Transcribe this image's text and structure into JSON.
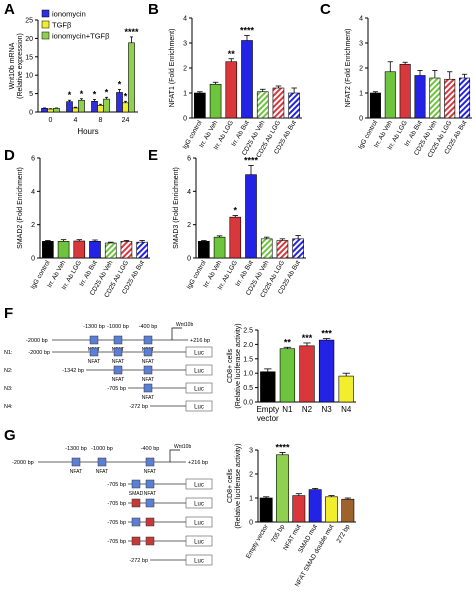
{
  "panels": {
    "A": {
      "letter": "A"
    },
    "B": {
      "letter": "B"
    },
    "C": {
      "letter": "C"
    },
    "D": {
      "letter": "D"
    },
    "E": {
      "letter": "E"
    },
    "F": {
      "letter": "F"
    },
    "G": {
      "letter": "G"
    }
  },
  "colors": {
    "ionomycin": "#2f2fe0",
    "tgfb": "#f2ee2e",
    "combo": "#8fd14f",
    "black": "#000000",
    "green": "#6ec43c",
    "red": "#d8383b",
    "blue": "#2323e6",
    "hatch_green": "#7fd04a",
    "hatch_red": "#d84a4a",
    "hatch_blue": "#4d4de0",
    "dark_red": "#8a1a1a",
    "brown": "#a0622d"
  },
  "chart_data": [
    {
      "id": "A",
      "type": "bar",
      "xlabel": "Hours",
      "ylabel": "Wnt10b mRNA",
      "ylabel2": "(Relative expression)",
      "categories": [
        "0",
        "4",
        "8",
        "24"
      ],
      "ylim": [
        0,
        25
      ],
      "yticks": [
        0,
        5,
        10,
        15,
        20,
        25
      ],
      "legend": "top-left",
      "series": [
        {
          "name": "ionomycin",
          "values": [
            1.0,
            2.8,
            2.9,
            5.3
          ],
          "errors": [
            0.1,
            0.4,
            0.5,
            0.8
          ],
          "sig": [
            "",
            "*",
            "*",
            "*"
          ]
        },
        {
          "name": "TGFβ",
          "values": [
            0.8,
            1.1,
            1.8,
            2.5
          ],
          "errors": [
            0.1,
            0.2,
            0.3,
            0.4
          ],
          "sig": [
            "",
            "",
            "",
            "*"
          ]
        },
        {
          "name": "ionomycin+TGFβ",
          "values": [
            1.0,
            3.2,
            3.5,
            18.8
          ],
          "errors": [
            0.1,
            0.4,
            0.5,
            1.6
          ],
          "sig": [
            "",
            "*",
            "*",
            "****"
          ]
        }
      ]
    },
    {
      "id": "B",
      "type": "bar",
      "ylabel": "NFAT1 (Fold Enrichment)",
      "categories": [
        "IgG control",
        "Irr. Ab Veh",
        "Irr. Ab LGG",
        "Irr. Ab But",
        "CD25 Ab Veh",
        "CD25 Ab LGG",
        "CD25 Ab But"
      ],
      "values": [
        1.0,
        1.35,
        2.25,
        3.1,
        1.05,
        1.2,
        1.0
      ],
      "errors": [
        0.05,
        0.08,
        0.12,
        0.2,
        0.1,
        0.08,
        0.2
      ],
      "sig": [
        "",
        "",
        "**",
        "****",
        "",
        "",
        ""
      ],
      "ylim": [
        0,
        4
      ],
      "yticks": [
        0,
        1,
        2,
        3,
        4
      ]
    },
    {
      "id": "C",
      "type": "bar",
      "ylabel": "NFAT2 (Fold Enrichment)",
      "categories": [
        "IgG control",
        "Irr. Ab Veh",
        "Irr. Ab LGG",
        "Irr. Ab But",
        "CD25 Ab Veh",
        "CD25 Ab LGG",
        "CD25 Ab But"
      ],
      "values": [
        1.0,
        1.85,
        2.15,
        1.7,
        1.6,
        1.55,
        1.6
      ],
      "errors": [
        0.05,
        0.4,
        0.08,
        0.2,
        0.3,
        0.3,
        0.15
      ],
      "sig": [
        "",
        "",
        "",
        "",
        "",
        "",
        ""
      ],
      "ylim": [
        0,
        4
      ],
      "yticks": [
        0,
        1,
        2,
        3,
        4
      ]
    },
    {
      "id": "D",
      "type": "bar",
      "ylabel": "SMAD2 (Fold Enrichment)",
      "categories": [
        "IgG control",
        "Irr. Ab Veh",
        "Irr. Ab LGG",
        "Irr. Ab But",
        "CD25 Ab Veh",
        "CD25 Ab LGG",
        "CD25 Ab But"
      ],
      "values": [
        1.0,
        1.0,
        1.02,
        1.0,
        0.9,
        1.0,
        0.95
      ],
      "errors": [
        0.05,
        0.1,
        0.08,
        0.08,
        0.05,
        0.05,
        0.1
      ],
      "sig": [
        "",
        "",
        "",
        "",
        "",
        "",
        ""
      ],
      "ylim": [
        0,
        6
      ],
      "yticks": [
        0,
        2,
        4,
        6
      ]
    },
    {
      "id": "E",
      "type": "bar",
      "ylabel": "SMAD3 (Fold Enrichment)",
      "categories": [
        "IgG control",
        "Irr. Ab Veh",
        "Irr. Ab LGG",
        "Irr. Ab But",
        "CD25 Ab Veh",
        "CD25 Ab LGG",
        "CD25 Ab But"
      ],
      "values": [
        1.0,
        1.25,
        2.45,
        5.0,
        1.15,
        1.05,
        1.15
      ],
      "errors": [
        0.05,
        0.08,
        0.1,
        0.55,
        0.1,
        0.1,
        0.2
      ],
      "sig": [
        "",
        "",
        "*",
        "****",
        "",
        "",
        ""
      ],
      "ylim": [
        0,
        6
      ],
      "yticks": [
        0,
        2,
        4,
        6
      ]
    },
    {
      "id": "F",
      "type": "bar",
      "ylabel": "CD8+ cells",
      "ylabel2": "(Relative luciferase activity)",
      "categories": [
        "Empty vector",
        "N1",
        "N2",
        "N3",
        "N4"
      ],
      "values": [
        1.05,
        1.85,
        1.95,
        2.15,
        0.9
      ],
      "errors": [
        0.1,
        0.05,
        0.1,
        0.05,
        0.1
      ],
      "sig": [
        "",
        "**",
        "***",
        "***",
        ""
      ],
      "ylim": [
        0,
        2.5
      ],
      "yticks": [
        0.0,
        0.5,
        1.0,
        1.5,
        2.0,
        2.5
      ]
    },
    {
      "id": "G",
      "type": "bar",
      "ylabel": "CD8+ cells",
      "ylabel2": "(Relative luciferase activity)",
      "categories": [
        "Empty vector",
        "705 bp",
        "NFAT mut",
        "SMAD mut",
        "NFAT SMAD double mut",
        "272 bp"
      ],
      "values": [
        1.0,
        2.8,
        1.1,
        1.35,
        1.05,
        0.95
      ],
      "errors": [
        0.05,
        0.1,
        0.08,
        0.05,
        0.05,
        0.05
      ],
      "sig": [
        "",
        "****",
        "",
        "",
        "",
        ""
      ],
      "ylim": [
        0,
        3
      ],
      "yticks": [
        0,
        1,
        2,
        3
      ]
    }
  ],
  "diagram_F": {
    "full": {
      "left": "-2000 bp",
      "right": "+216 bp",
      "sites": [
        "-1300 bp",
        "-1000 bp",
        "-400 bp"
      ],
      "gene": "Wnt10b",
      "site_label": "NFAT"
    },
    "constructs": [
      {
        "name": "N1:",
        "left": "-2000 bp",
        "sites": 3,
        "luc": "Luc"
      },
      {
        "name": "N2:",
        "left": "-1342 bp",
        "sites": 2,
        "luc": "Luc"
      },
      {
        "name": "N3:",
        "left": "-705 bp",
        "sites": 1,
        "luc": "Luc"
      },
      {
        "name": "N4:",
        "left": "-272 bp",
        "sites": 0,
        "luc": "Luc"
      }
    ]
  },
  "diagram_G": {
    "full": {
      "left": "-2000 bp",
      "right": "+216 bp",
      "sites": [
        "-1300 bp",
        "-1000 bp",
        "-400 bp"
      ],
      "gene": "Wnt10b",
      "site_label": "NFAT"
    },
    "constructs": [
      {
        "left": "-705 bp",
        "smad": "wt",
        "nfat": "wt",
        "luc": "Luc"
      },
      {
        "left": "-705 bp",
        "smad": "mut",
        "nfat": "wt",
        "luc": "Luc"
      },
      {
        "left": "-705 bp",
        "smad": "wt",
        "nfat": "mut",
        "luc": "Luc"
      },
      {
        "left": "-705 bp",
        "smad": "mut",
        "nfat": "mut",
        "luc": "Luc"
      },
      {
        "left": "-272 bp",
        "smad": "none",
        "nfat": "none",
        "luc": "Luc"
      }
    ],
    "labels": {
      "smad": "SMAD",
      "nfat": "NFAT"
    }
  }
}
